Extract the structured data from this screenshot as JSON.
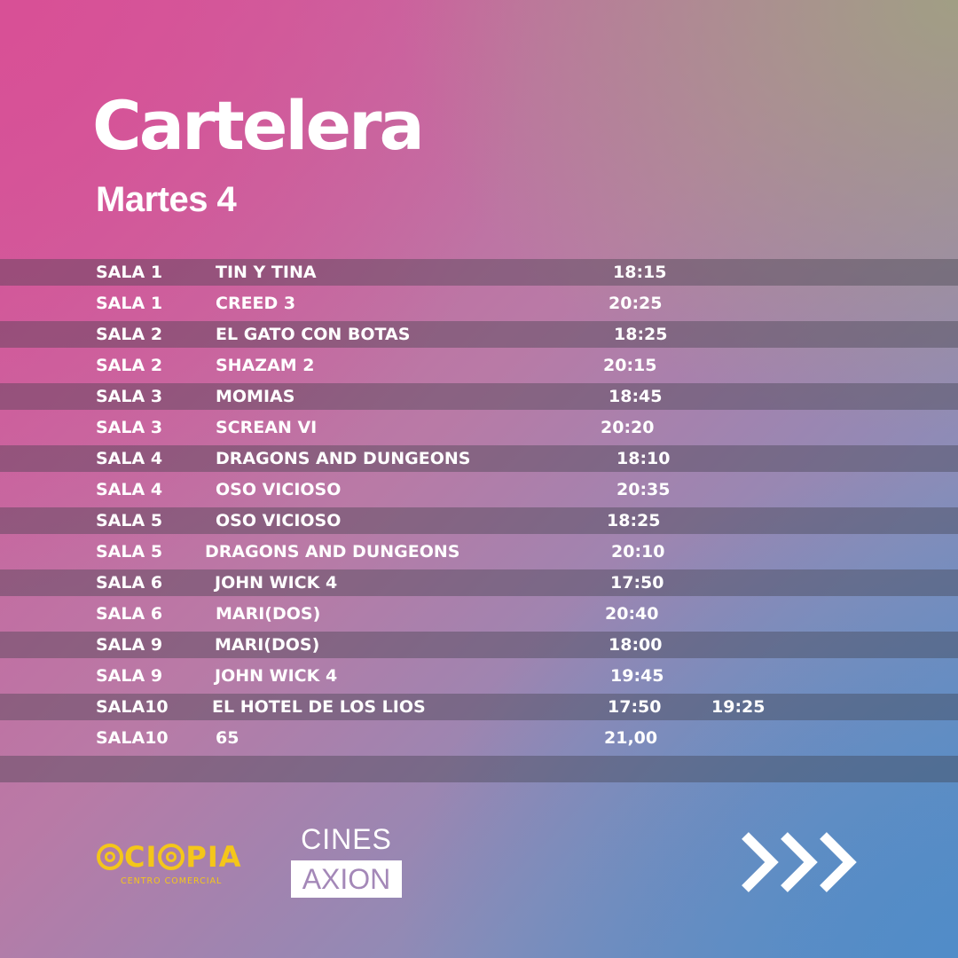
{
  "header": {
    "title": "Cartelera",
    "subtitle": "Martes 4"
  },
  "schedule": [
    {
      "sala": "SALA 1",
      "movie": "TIN Y TINA",
      "time": "18:15",
      "time2": ""
    },
    {
      "sala": "SALA 1",
      "movie": "CREED 3",
      "time": "20:25",
      "time2": ""
    },
    {
      "sala": "SALA 2",
      "movie": "EL GATO CON BOTAS",
      "time": "18:25",
      "time2": ""
    },
    {
      "sala": "SALA 2",
      "movie": "SHAZAM 2",
      "time": "20:15",
      "time2": ""
    },
    {
      "sala": "SALA 3",
      "movie": "MOMIAS",
      "time": "18:45",
      "time2": ""
    },
    {
      "sala": "SALA 3",
      "movie": "SCREAN VI",
      "time": "20:20",
      "time2": ""
    },
    {
      "sala": "SALA 4",
      "movie": "DRAGONS AND DUNGEONS",
      "time": "18:10",
      "time2": ""
    },
    {
      "sala": "SALA 4",
      "movie": "OSO VICIOSO",
      "time": "20:35",
      "time2": ""
    },
    {
      "sala": "SALA 5",
      "movie": "OSO VICIOSO",
      "time": "18:25",
      "time2": ""
    },
    {
      "sala": "SALA 5",
      "movie": "DRAGONS AND DUNGEONS",
      "time": "20:10",
      "time2": ""
    },
    {
      "sala": "SALA 6",
      "movie": "JOHN WICK 4",
      "time": "17:50",
      "time2": ""
    },
    {
      "sala": "SALA 6",
      "movie": "MARI(DOS)",
      "time": "20:40",
      "time2": ""
    },
    {
      "sala": "SALA 9",
      "movie": "MARI(DOS)",
      "time": "18:00",
      "time2": ""
    },
    {
      "sala": "SALA 9",
      "movie": "JOHN WICK 4",
      "time": "19:45",
      "time2": ""
    },
    {
      "sala": "SALA10",
      "movie": "EL HOTEL DE LOS LIOS",
      "time": "17:50",
      "time2": "19:25"
    },
    {
      "sala": "SALA10",
      "movie": "65",
      "time": "21,00",
      "time2": ""
    }
  ],
  "footer": {
    "ociopia_logo": "OCIOPIA",
    "ociopia_sub": "CENTRO COMERCIAL",
    "cines_top": "CINES",
    "cines_box": "AXION",
    "next_icon": "triple-chevron-right-icon"
  },
  "colors": {
    "logo_yellow": "#f4c61a",
    "axion_text": "#a488b8"
  }
}
